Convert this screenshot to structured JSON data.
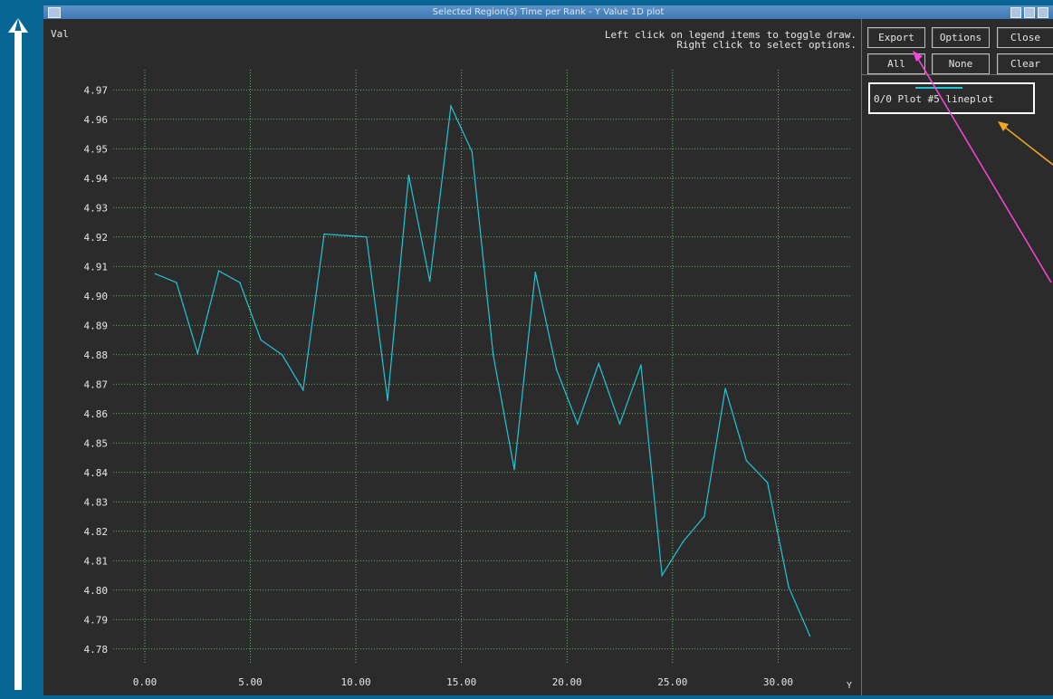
{
  "window": {
    "title": "Selected Region(s) Time per Rank -  Y Value 1D plot"
  },
  "hint": {
    "line1": "Left click on legend items to toggle draw.",
    "line2": "Right click to select options."
  },
  "buttons": {
    "export": "Export",
    "options": "Options",
    "close": "Close",
    "all": "All",
    "none": "None",
    "clear": "Clear"
  },
  "legend": {
    "label": "0/0 Plot #5 lineplot",
    "color": "#1fc6d6"
  },
  "chart_data": {
    "type": "line",
    "ylabel": "Val",
    "xlabel": "Y",
    "xlim": [
      -1.5,
      33.5
    ],
    "ylim": [
      4.775,
      4.975
    ],
    "x_ticks": [
      0,
      5,
      10,
      15,
      20,
      25,
      30
    ],
    "x_tick_labels": [
      "0.00",
      "5.00",
      "10.00",
      "15.00",
      "20.00",
      "25.00",
      "30.00"
    ],
    "y_ticks": [
      4.97,
      4.96,
      4.95,
      4.94,
      4.93,
      4.92,
      4.91,
      4.9,
      4.89,
      4.88,
      4.87,
      4.86,
      4.85,
      4.84,
      4.83,
      4.82,
      4.81,
      4.8,
      4.79,
      4.78
    ],
    "y_tick_labels": [
      "4.97",
      "4.96",
      "4.95",
      "4.94",
      "4.93",
      "4.92",
      "4.91",
      "4.90",
      "4.89",
      "4.88",
      "4.87",
      "4.86",
      "4.85",
      "4.84",
      "4.83",
      "4.82",
      "4.81",
      "4.80",
      "4.79",
      "4.78"
    ],
    "grid": true,
    "series": [
      {
        "color": "#1fc6d6",
        "x": [
          0.5,
          1.5,
          2.5,
          3.5,
          4.5,
          5.5,
          6.5,
          7.5,
          8.5,
          9.5,
          10.5,
          11.5,
          12.5,
          13.5,
          14.5,
          15.5,
          16.5,
          17.5,
          18.5,
          19.5,
          20.5,
          21.5,
          22.5,
          23.5,
          24.5,
          25.5,
          26.5,
          27.5,
          28.5,
          29.5,
          30.5,
          31.5
        ],
        "y": [
          4.9075,
          4.9045,
          4.8805,
          4.9085,
          4.9045,
          4.885,
          4.88,
          4.868,
          4.921,
          4.9205,
          4.92,
          4.8645,
          4.941,
          4.905,
          4.9645,
          4.949,
          4.88,
          4.841,
          4.908,
          4.875,
          4.8565,
          4.877,
          4.8565,
          4.8765,
          4.805,
          4.8165,
          4.825,
          4.8685,
          4.844,
          4.8365,
          4.801,
          4.7845
        ]
      }
    ]
  }
}
